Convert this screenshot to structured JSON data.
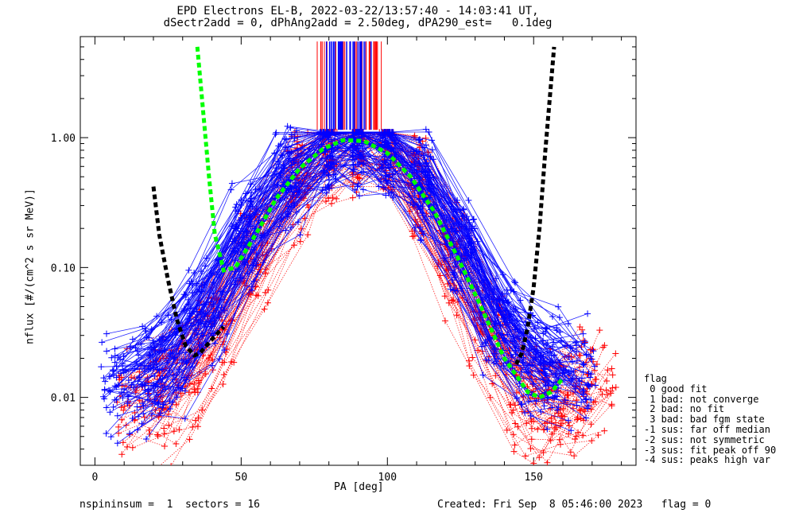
{
  "chart_data": {
    "type": "line",
    "title": "EPD Electrons EL-B, 2022-03-22/13:57:40 - 14:03:41 UT,",
    "subtitle": "dSectr2add = 0, dPhAng2add = 2.50deg, dPA290_est=   0.1deg",
    "xlabel": "PA [deg]",
    "ylabel": "nflux [#/(cm^2 s sr MeV)]",
    "xlim": [
      -5,
      185
    ],
    "ylim": [
      0.003,
      6.0
    ],
    "yscale": "log",
    "xticks": [
      0,
      50,
      100,
      150
    ],
    "yticks": [
      0.01,
      0.1,
      1.0
    ],
    "ytick_labels": [
      "0.01",
      "0.10",
      "1.00"
    ],
    "grid": false,
    "series": [
      {
        "color": "#ff0000",
        "style": "dotted",
        "marker": "+",
        "x": [
          16,
          28,
          40,
          55,
          70,
          80,
          90,
          100,
          110,
          122,
          135,
          148,
          160,
          168
        ],
        "y": [
          0.008,
          0.012,
          0.03,
          0.12,
          0.45,
          0.8,
          0.9,
          0.8,
          0.4,
          0.12,
          0.03,
          0.01,
          0.008,
          0.012
        ]
      },
      {
        "color": "#0000ff",
        "style": "solid",
        "marker": "+",
        "x": [
          12,
          25,
          38,
          52,
          66,
          80,
          90,
          100,
          112,
          125,
          138,
          150,
          162
        ],
        "y": [
          0.012,
          0.02,
          0.05,
          0.18,
          0.5,
          0.85,
          0.95,
          0.85,
          0.45,
          0.15,
          0.04,
          0.02,
          0.015
        ]
      },
      {
        "color": "#00ff00",
        "style": "dashed",
        "x": [
          35,
          37,
          39,
          41,
          44,
          48,
          55,
          62,
          70,
          78,
          85,
          92,
          100,
          108,
          116,
          124,
          132,
          140,
          148,
          152,
          156,
          160
        ],
        "y": [
          5.0,
          1.6,
          0.5,
          0.18,
          0.095,
          0.1,
          0.18,
          0.34,
          0.58,
          0.82,
          0.96,
          0.94,
          0.76,
          0.5,
          0.27,
          0.12,
          0.05,
          0.02,
          0.011,
          0.01,
          0.011,
          0.014
        ]
      },
      {
        "color": "#000000",
        "style": "dashed",
        "x": [
          20,
          22,
          25,
          28,
          31,
          34,
          36,
          40,
          44
        ],
        "y": [
          0.42,
          0.18,
          0.08,
          0.04,
          0.025,
          0.021,
          0.022,
          0.028,
          0.035
        ]
      },
      {
        "color": "#000000",
        "style": "dashed",
        "x": [
          144,
          146,
          148,
          150,
          152,
          154,
          157
        ],
        "y": [
          0.018,
          0.022,
          0.035,
          0.07,
          0.2,
          0.8,
          5.0
        ]
      }
    ],
    "peak_band": {
      "xrange": [
        76,
        98
      ],
      "ytop": 5.5,
      "ybottom": 1.15
    }
  },
  "footer": {
    "left": "nspininsum =  1  sectors = 16",
    "right": "Created: Fri Sep  8 05:46:00 2023   flag = 0"
  },
  "legend": {
    "title": "flag",
    "items": [
      " 0 good fit",
      " 1 bad: not converge",
      " 2 bad: no fit",
      " 3 bad: bad fgm state",
      "-1 sus: far off median",
      "-2 sus: not symmetric",
      "-3 sus: fit peak off 90",
      "-4 sus: peaks high var"
    ]
  }
}
